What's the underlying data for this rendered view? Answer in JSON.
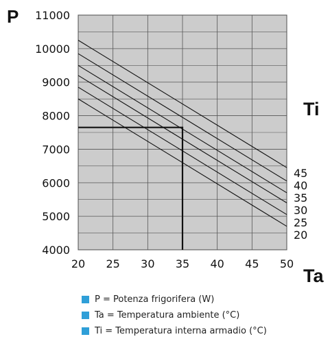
{
  "chart_data": {
    "type": "line",
    "x_axis": {
      "symbol": "Ta",
      "min": 20,
      "max": 50,
      "ticks": [
        20,
        25,
        30,
        35,
        40,
        45,
        50
      ]
    },
    "y_axis": {
      "symbol": "P",
      "min": 4000,
      "max": 11000,
      "ticks": [
        4000,
        5000,
        6000,
        7000,
        8000,
        9000,
        10000,
        11000
      ]
    },
    "grid": true,
    "background": "#cccccc",
    "series_label": "Ti",
    "series": [
      {
        "name": "45",
        "x": [
          20,
          50
        ],
        "y": [
          10250,
          6450
        ]
      },
      {
        "name": "40",
        "x": [
          20,
          50
        ],
        "y": [
          9850,
          6050
        ]
      },
      {
        "name": "35",
        "x": [
          20,
          50
        ],
        "y": [
          9500,
          5700
        ]
      },
      {
        "name": "30",
        "x": [
          20,
          50
        ],
        "y": [
          9200,
          5400
        ]
      },
      {
        "name": "25",
        "x": [
          20,
          50
        ],
        "y": [
          8850,
          5050
        ]
      },
      {
        "name": "20",
        "x": [
          20,
          50
        ],
        "y": [
          8500,
          4700
        ]
      }
    ],
    "example_reading": {
      "x": 35,
      "y": 7650
    },
    "legend": [
      "P = Potenza frigorifera (W)",
      "Ta = Temperatura ambiente (°C)",
      "Ti = Temperatura interna armadio (°C)"
    ]
  },
  "colors": {
    "swatch": "#2f9fd8",
    "lines": "#111111",
    "grid": "#555555"
  }
}
